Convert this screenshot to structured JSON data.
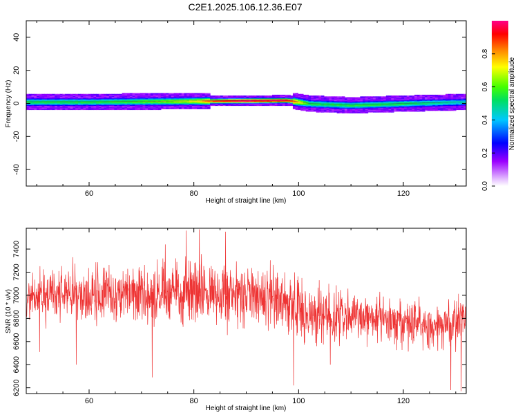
{
  "title": "C2E1.2025.106.12.36.E07",
  "chart_data": [
    {
      "type": "heatmap",
      "name": "spectrogram",
      "xlabel": "Height of straight line (km)",
      "ylabel": "Frequency (Hz)",
      "xlim": [
        48,
        132
      ],
      "ylim": [
        -50,
        50
      ],
      "xticks": [
        60,
        80,
        100,
        120
      ],
      "yticks": [
        -40,
        -20,
        0,
        20,
        40
      ],
      "ridge_frequency_hz": [
        {
          "x": 48,
          "y": 1.0
        },
        {
          "x": 60,
          "y": 1.0
        },
        {
          "x": 80,
          "y": 1.5
        },
        {
          "x": 98,
          "y": 2.0
        },
        {
          "x": 102,
          "y": 0.0
        },
        {
          "x": 110,
          "y": -1.0
        },
        {
          "x": 120,
          "y": 0.0
        },
        {
          "x": 132,
          "y": 1.0
        }
      ],
      "peak_amplitude_profile": [
        {
          "x": 48,
          "v": 0.55
        },
        {
          "x": 60,
          "v": 0.55
        },
        {
          "x": 70,
          "v": 0.6
        },
        {
          "x": 80,
          "v": 0.7
        },
        {
          "x": 84,
          "v": 0.9
        },
        {
          "x": 90,
          "v": 1.0
        },
        {
          "x": 98,
          "v": 0.95
        },
        {
          "x": 102,
          "v": 0.55
        },
        {
          "x": 110,
          "v": 0.55
        },
        {
          "x": 120,
          "v": 0.55
        },
        {
          "x": 132,
          "v": 0.45
        }
      ],
      "colorbar": {
        "label": "Normalized spectral amplitude",
        "range": [
          0.0,
          1.0
        ],
        "ticks": [
          "0.0",
          "0.2",
          "0.4",
          "0.6",
          "0.8"
        ]
      }
    },
    {
      "type": "line",
      "name": "snr",
      "xlabel": "Height of straight line (km)",
      "ylabel": "SNR (10 * v/v)",
      "xlim": [
        48,
        132
      ],
      "ylim": [
        6150,
        7580
      ],
      "xticks": [
        60,
        80,
        100,
        120
      ],
      "yticks": [
        6200,
        6400,
        6600,
        6800,
        7000,
        7200,
        7400
      ],
      "line_color": "#ee3333",
      "series": [
        {
          "x": [
            48,
            52,
            56,
            60,
            64,
            68,
            72,
            76,
            80,
            84,
            88,
            92,
            96,
            99,
            100,
            102,
            106,
            110,
            114,
            118,
            122,
            126,
            130,
            132
          ],
          "mean": [
            6980,
            7000,
            7010,
            7000,
            7010,
            7010,
            6990,
            7030,
            7020,
            7010,
            6990,
            6990,
            6960,
            6950,
            6870,
            6830,
            6840,
            6810,
            6800,
            6780,
            6770,
            6760,
            6760,
            6750
          ],
          "spread": [
            220,
            240,
            240,
            240,
            250,
            250,
            260,
            280,
            300,
            280,
            260,
            260,
            260,
            280,
            300,
            260,
            240,
            220,
            220,
            220,
            220,
            230,
            230,
            220
          ]
        }
      ],
      "notable_extremes": [
        {
          "x": 50.5,
          "y": 6510
        },
        {
          "x": 57.5,
          "y": 6400
        },
        {
          "x": 72.0,
          "y": 6290
        },
        {
          "x": 74.5,
          "y": 7440
        },
        {
          "x": 78.5,
          "y": 7560
        },
        {
          "x": 81.0,
          "y": 7570
        },
        {
          "x": 86.0,
          "y": 7550
        },
        {
          "x": 99.0,
          "y": 6220
        },
        {
          "x": 106.0,
          "y": 6400
        },
        {
          "x": 129.0,
          "y": 6180
        },
        {
          "x": 131.0,
          "y": 6170
        }
      ]
    }
  ]
}
